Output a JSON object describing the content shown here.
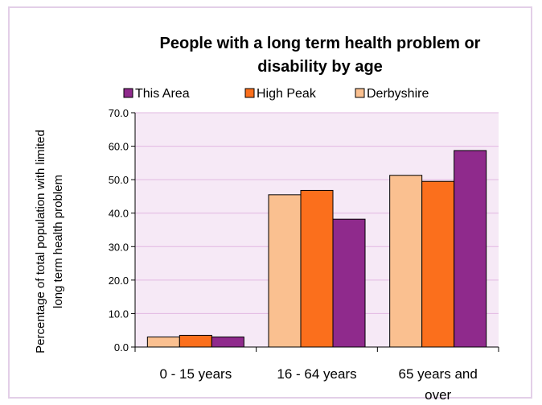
{
  "chart_data": {
    "type": "bar",
    "title_lines": [
      "People with a long term health problem or",
      "disability by age"
    ],
    "ylabel_lines": [
      "Percentage of total population with limited",
      "long term health problem"
    ],
    "xlabel": "",
    "categories": [
      [
        "0 - 15 years"
      ],
      [
        "16 - 64 years"
      ],
      [
        "65 years and",
        "over"
      ]
    ],
    "series": [
      {
        "name": "Derbyshire",
        "color": "#fac090",
        "values": [
          3.0,
          45.5,
          51.3
        ]
      },
      {
        "name": "High Peak",
        "color": "#fb6f1c",
        "values": [
          3.5,
          46.8,
          49.5
        ]
      },
      {
        "name": "This Area",
        "color": "#8f2a8c",
        "values": [
          3.0,
          38.2,
          58.7
        ]
      }
    ],
    "legend_order": [
      "This Area",
      "High Peak",
      "Derbyshire"
    ],
    "legend_position": "top",
    "ylim": [
      0,
      70
    ],
    "yticks": [
      "0.0",
      "10.0",
      "20.0",
      "30.0",
      "40.0",
      "50.0",
      "60.0",
      "70.0"
    ],
    "grid": true,
    "plot_background": "#f6e9f6"
  }
}
